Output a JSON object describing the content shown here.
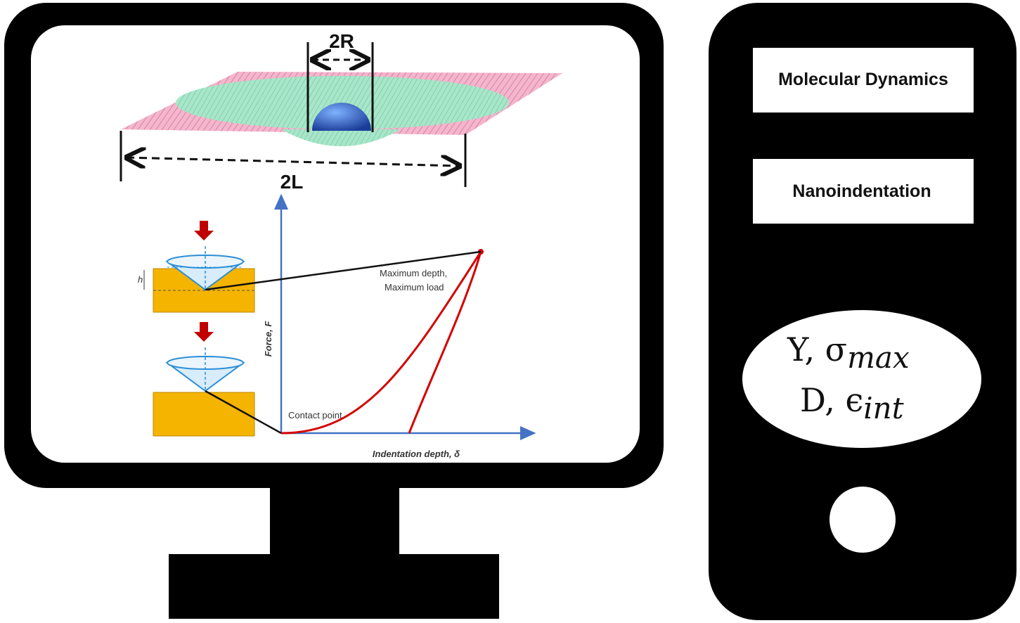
{
  "monitor": {
    "dimension_2R": "2R",
    "dimension_2L": "2L",
    "plot": {
      "x_axis_label": "Indentation depth, δ",
      "y_axis_label": "Force, F",
      "annotation_max_line1": "Maximum depth,",
      "annotation_max_line2": "Maximum load",
      "annotation_contact": "Contact point"
    },
    "h_label": "h",
    "colors": {
      "load_curve": "#d40000",
      "axes": "#4472c4",
      "substrate": "#f5b400",
      "indenter": "#2b8ed6",
      "arrow": "#c00000"
    }
  },
  "tower": {
    "box1_label": "Molecular Dynamics",
    "box2_label": "Nanoindentation",
    "ellipse": {
      "line1_main": "Y, σ",
      "line1_sub": "max",
      "line2_main": "D, ϵ",
      "line2_sub": "int"
    }
  }
}
